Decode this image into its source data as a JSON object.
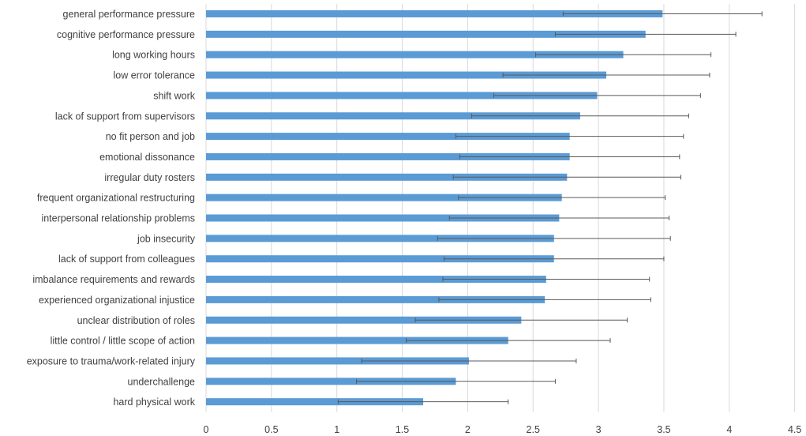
{
  "chart_data": {
    "type": "bar",
    "orientation": "horizontal",
    "title": "",
    "xlabel": "",
    "ylabel": "",
    "xlim": [
      0,
      4.5
    ],
    "x_ticks": [
      "0",
      "0.5",
      "1",
      "1.5",
      "2",
      "2.5",
      "3",
      "3.5",
      "4",
      "4.5"
    ],
    "grid": true,
    "legend": "none",
    "bar_color": "#5b9bd5",
    "error_bar_color": "#595959",
    "categories": [
      "general performance pressure",
      "cognitive performance pressure",
      "long working hours",
      "low error tolerance",
      "shift work",
      "lack of support from supervisors",
      "no fit person and job",
      "emotional dissonance",
      "irregular duty rosters",
      "frequent organizational restructuring",
      "interpersonal relationship problems",
      "job insecurity",
      "lack of support from colleagues",
      "imbalance requirements and rewards",
      "experienced organizational injustice",
      "unclear distribution of roles",
      "little control / little scope of action",
      "exposure to trauma/work-related injury",
      "underchallenge",
      "hard physical work"
    ],
    "values": [
      3.49,
      3.36,
      3.19,
      3.06,
      2.99,
      2.86,
      2.78,
      2.78,
      2.76,
      2.72,
      2.7,
      2.66,
      2.66,
      2.6,
      2.59,
      2.41,
      2.31,
      2.01,
      1.91,
      1.66
    ],
    "error": [
      0.76,
      0.69,
      0.67,
      0.79,
      0.79,
      0.83,
      0.87,
      0.84,
      0.87,
      0.79,
      0.84,
      0.89,
      0.84,
      0.79,
      0.81,
      0.81,
      0.78,
      0.82,
      0.76,
      0.65
    ]
  }
}
